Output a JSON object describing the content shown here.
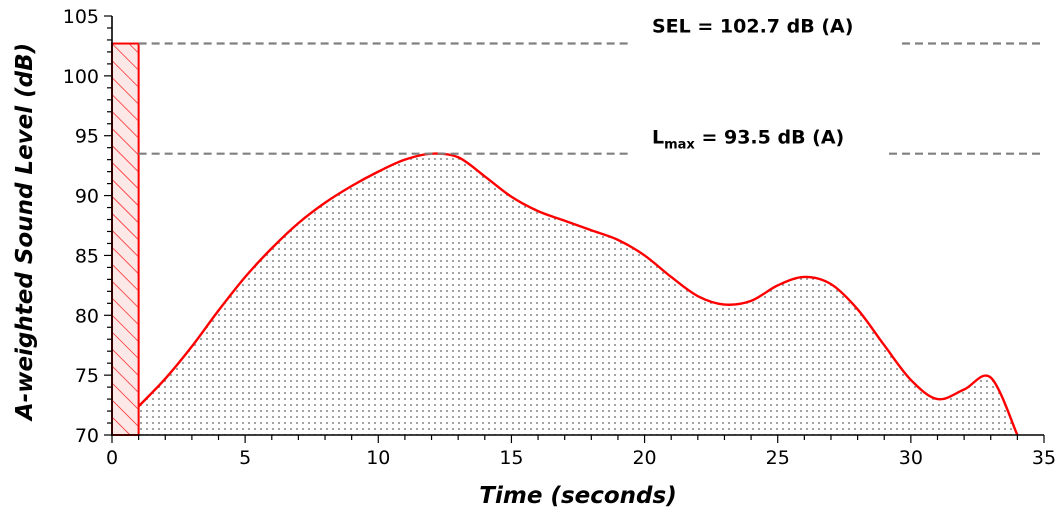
{
  "chart_data": {
    "type": "area",
    "title": "",
    "xlabel": "Time (seconds)",
    "ylabel": "A-weighted Sound Level (dB)",
    "xlim": [
      0,
      35
    ],
    "ylim": [
      70,
      105
    ],
    "xticks": [
      0,
      5,
      10,
      15,
      20,
      25,
      30,
      35
    ],
    "yticks": [
      70,
      75,
      80,
      85,
      90,
      95,
      100,
      105
    ],
    "grid": false,
    "series": [
      {
        "type": "line",
        "color": "#ff0000",
        "fill": "dotted-gray",
        "x": [
          1,
          2,
          3,
          4,
          5,
          6,
          7,
          8,
          9,
          10,
          11,
          12,
          13,
          14,
          15,
          16,
          17,
          18,
          19,
          20,
          21,
          22,
          23,
          24,
          25,
          26,
          27,
          28,
          29,
          30,
          31,
          32,
          33,
          34
        ],
        "y": [
          72.4,
          74.7,
          77.4,
          80.4,
          83.2,
          85.6,
          87.7,
          89.4,
          90.8,
          92.0,
          93.0,
          93.5,
          93.2,
          91.6,
          89.9,
          88.7,
          87.9,
          87.1,
          86.3,
          85.0,
          83.2,
          81.6,
          80.9,
          81.2,
          82.5,
          83.2,
          82.6,
          80.5,
          77.5,
          74.6,
          73.0,
          73.8,
          74.8,
          70.0
        ]
      },
      {
        "type": "bar",
        "color": "#ff0000",
        "fill": "hatch",
        "x0": 0,
        "x1": 1,
        "y": 102.7
      }
    ],
    "reference_lines": [
      {
        "y": 102.7,
        "style": "dashed",
        "color": "#808080"
      },
      {
        "y": 93.5,
        "style": "dashed",
        "color": "#808080"
      }
    ],
    "annotations": [
      {
        "main": "SEL = 102.7 dB (A)",
        "y": 102.7
      },
      {
        "main": "L",
        "sub": "max",
        "rest": " = 93.5 dB (A)",
        "y": 93.5
      }
    ]
  }
}
